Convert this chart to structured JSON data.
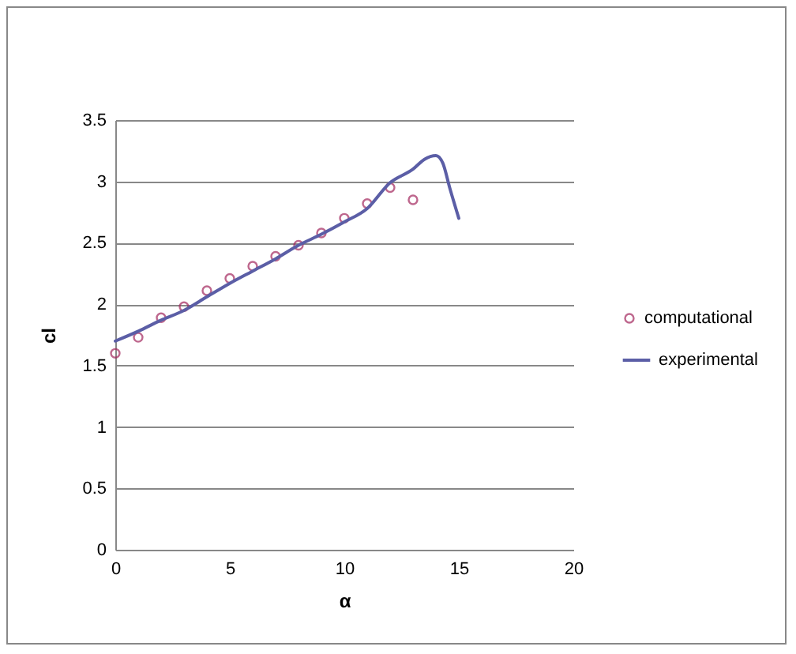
{
  "chart_data": {
    "type": "scatter",
    "xlabel": "α",
    "ylabel": "cl",
    "xlim": [
      0,
      20
    ],
    "xticks": [
      0,
      5,
      10,
      15,
      20
    ],
    "ylim": [
      0,
      3.5
    ],
    "yticks": [
      0,
      0.5,
      1,
      1.5,
      2,
      2.5,
      3,
      3.5
    ],
    "grid": "y",
    "legend": "right",
    "series": [
      {
        "name": "computational",
        "marker": "circle",
        "color": "#a3285e",
        "x": [
          0,
          1,
          2,
          3,
          4,
          5,
          6,
          7,
          8,
          9,
          10,
          11,
          12,
          13
        ],
        "values": [
          1.6,
          1.73,
          1.89,
          1.98,
          2.11,
          2.21,
          2.31,
          2.39,
          2.48,
          2.58,
          2.7,
          2.82,
          2.95,
          2.85
        ]
      },
      {
        "name": "experimental",
        "type": "line",
        "marker": "none",
        "color": "#5b5ea6",
        "x": [
          0,
          1,
          2,
          3,
          4,
          5,
          6,
          7,
          8,
          9,
          10,
          11,
          12,
          13,
          13.5,
          14,
          14.3,
          14.6,
          15
        ],
        "values": [
          1.7,
          1.78,
          1.87,
          1.95,
          2.06,
          2.17,
          2.27,
          2.37,
          2.48,
          2.57,
          2.67,
          2.78,
          2.99,
          3.1,
          3.18,
          3.21,
          3.15,
          2.95,
          2.7
        ]
      }
    ]
  }
}
